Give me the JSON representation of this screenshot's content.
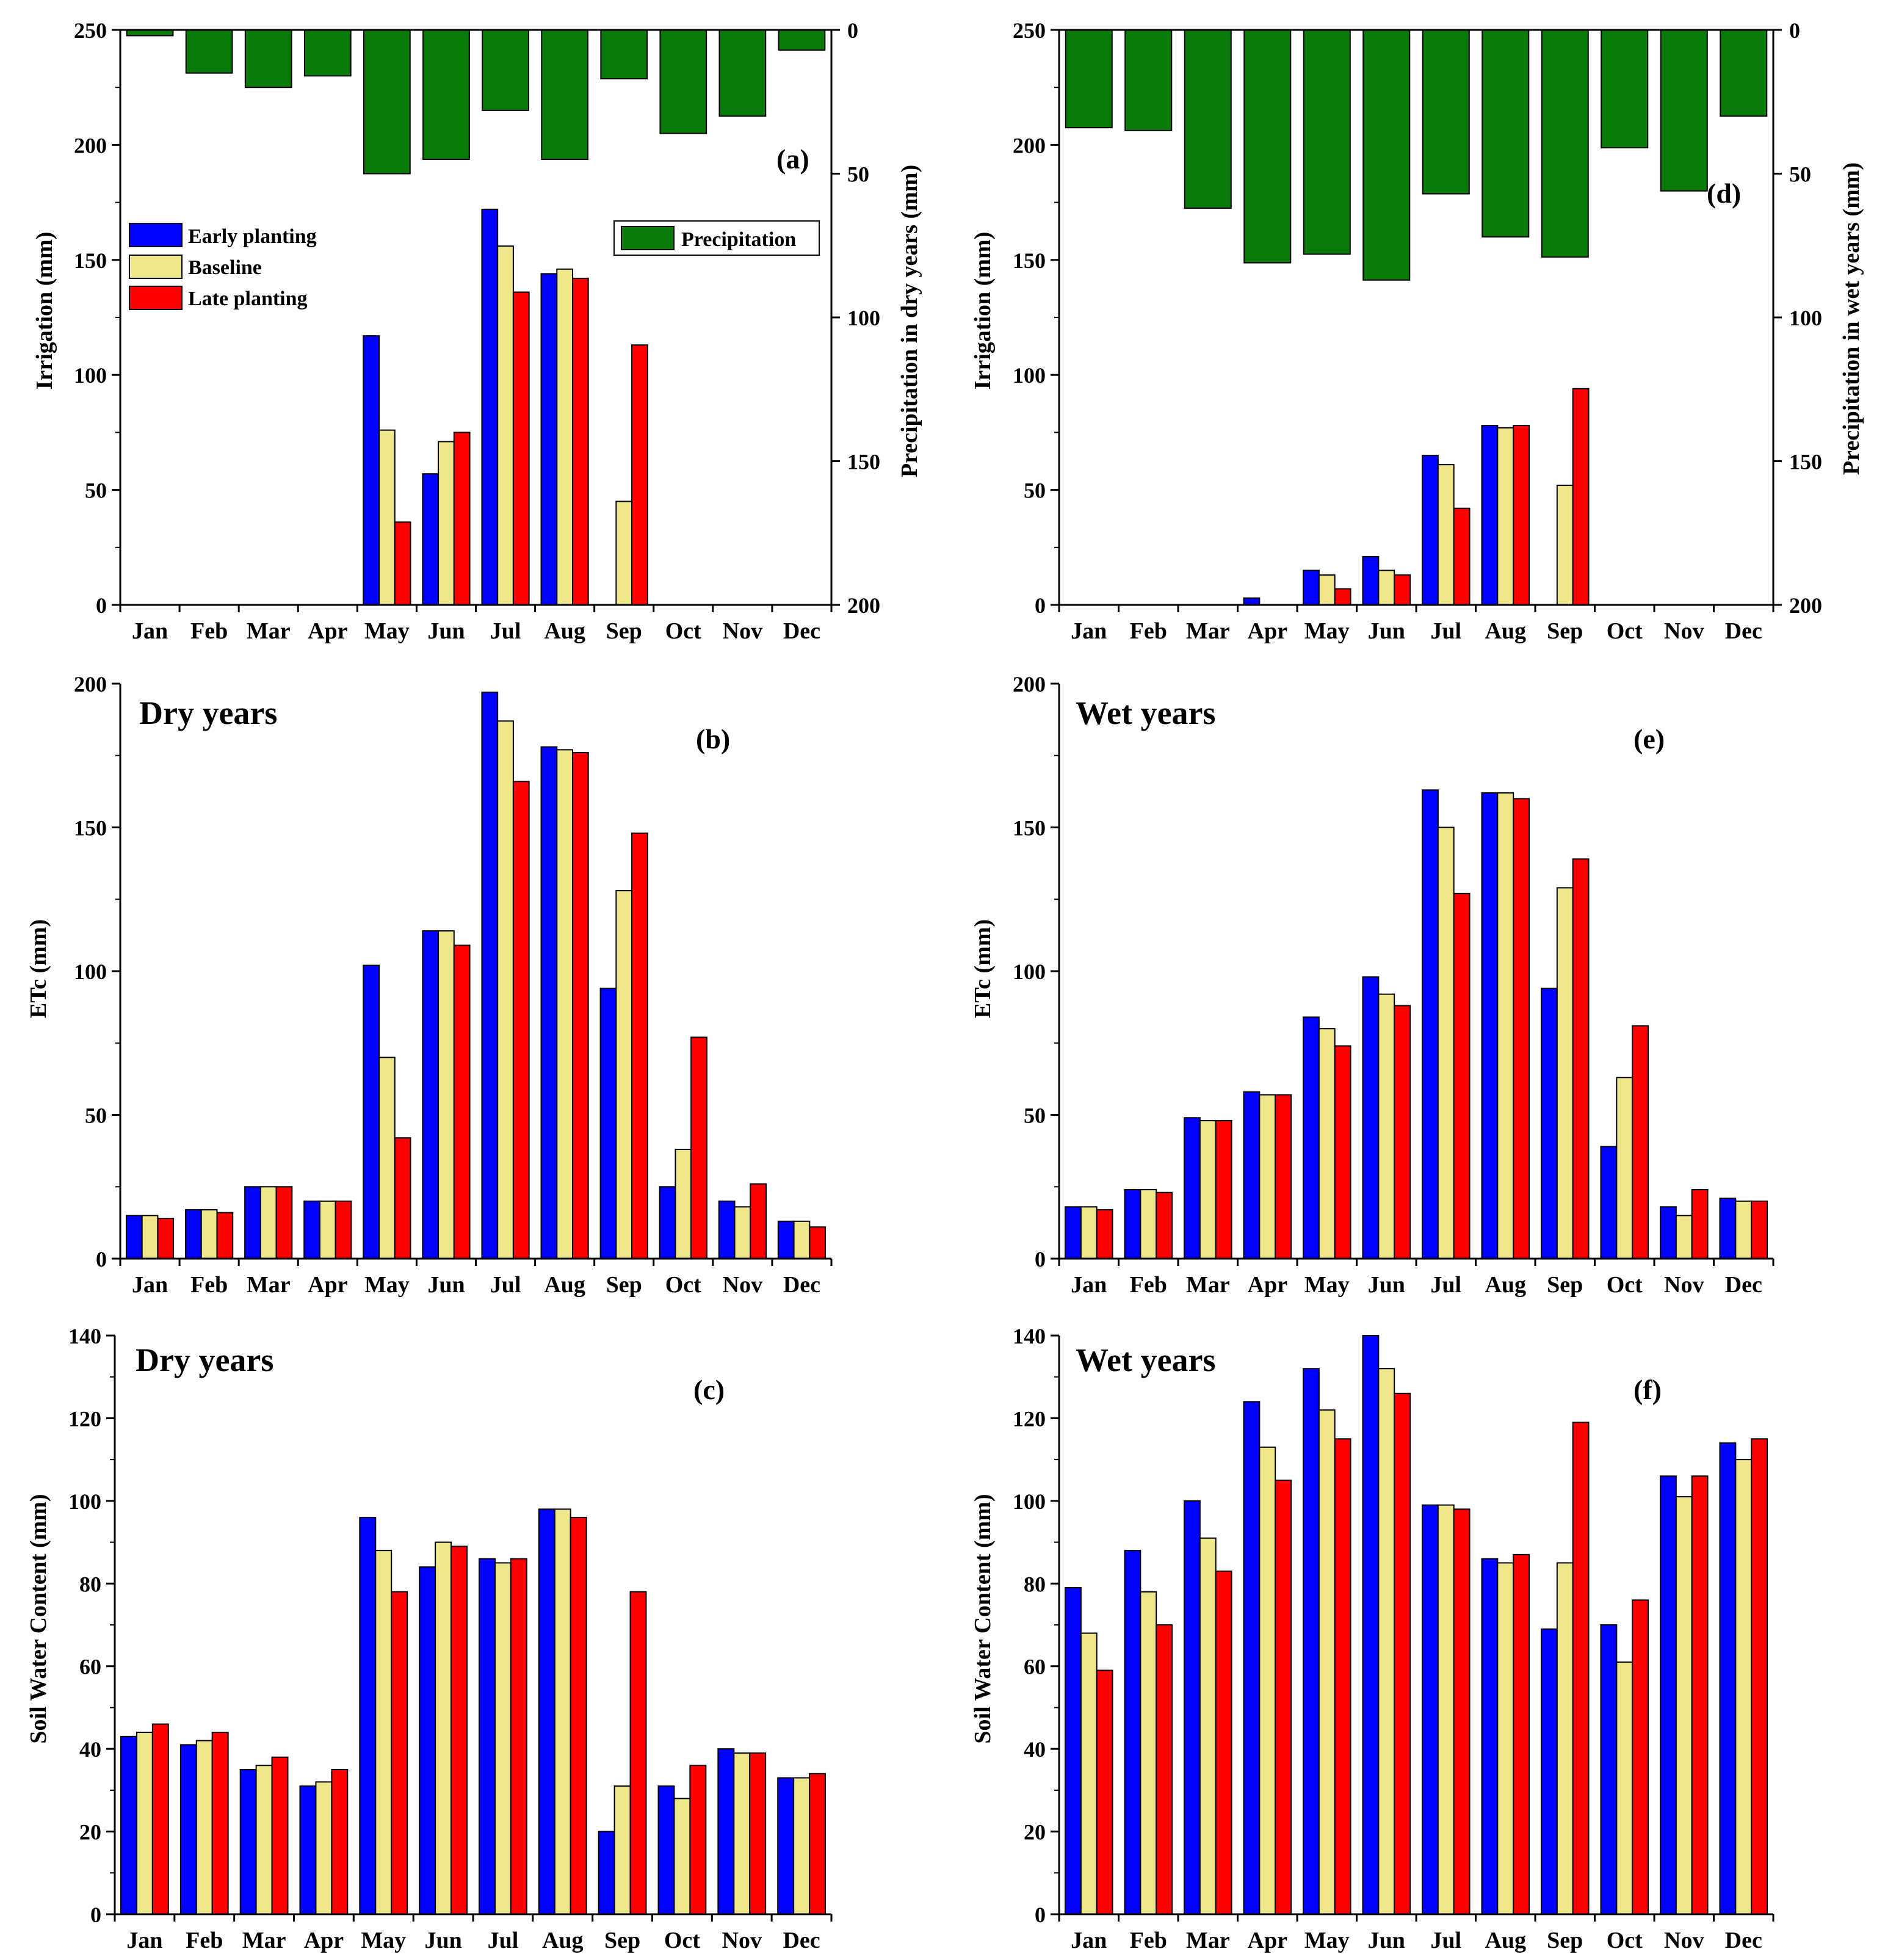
{
  "figure": {
    "colors": {
      "early": "#0000ff",
      "baseline": "#f0e68c",
      "late": "#ff0000",
      "precip": "#0a7a0a",
      "axis": "#000000"
    }
  },
  "chart_data": [
    {
      "id": "a",
      "type": "bar",
      "panel_label": "(a)",
      "categories": [
        "Jan",
        "Feb",
        "Mar",
        "Apr",
        "May",
        "Jun",
        "Jul",
        "Aug",
        "Sep",
        "Oct",
        "Nov",
        "Dec"
      ],
      "ylabel": "Irrigation (mm)",
      "ylim": [
        0,
        250
      ],
      "yticks": [
        0,
        50,
        100,
        150,
        200,
        250
      ],
      "series": [
        {
          "name": "Early planting",
          "values": [
            0,
            0,
            0,
            0,
            117,
            57,
            172,
            144,
            0,
            0,
            0,
            0
          ]
        },
        {
          "name": "Baseline",
          "values": [
            0,
            0,
            0,
            0,
            76,
            71,
            156,
            146,
            45,
            0,
            0,
            0
          ]
        },
        {
          "name": "Late planting",
          "values": [
            0,
            0,
            0,
            0,
            36,
            75,
            136,
            142,
            113,
            0,
            0,
            0
          ]
        }
      ],
      "legend": [
        "Early planting",
        "Baseline",
        "Late planting"
      ],
      "legend_placement": "top-left",
      "secondary": {
        "name": "Precipitation",
        "ylabel": "Precipitation in dry years (mm)",
        "ylim": [
          0,
          200
        ],
        "yticks": [
          0,
          50,
          100,
          150,
          200
        ],
        "direction": "inverted",
        "values": [
          2,
          15,
          20,
          16,
          50,
          45,
          28,
          45,
          17,
          36,
          30,
          7
        ],
        "legend": "Precipitation",
        "legend_placement": "top-right"
      }
    },
    {
      "id": "d",
      "type": "bar",
      "panel_label": "(d)",
      "categories": [
        "Jan",
        "Feb",
        "Mar",
        "Apr",
        "May",
        "Jun",
        "Jul",
        "Aug",
        "Sep",
        "Oct",
        "Nov",
        "Dec"
      ],
      "ylabel": "Irrigation (mm)",
      "ylim": [
        0,
        250
      ],
      "yticks": [
        0,
        50,
        100,
        150,
        200,
        250
      ],
      "series": [
        {
          "name": "Early planting",
          "values": [
            0,
            0,
            0,
            3,
            15,
            21,
            65,
            78,
            0,
            0,
            0,
            0
          ]
        },
        {
          "name": "Baseline",
          "values": [
            0,
            0,
            0,
            0,
            13,
            15,
            61,
            77,
            52,
            0,
            0,
            0
          ]
        },
        {
          "name": "Late planting",
          "values": [
            0,
            0,
            0,
            0,
            7,
            13,
            42,
            78,
            94,
            0,
            0,
            0
          ]
        }
      ],
      "secondary": {
        "name": "Precipitation",
        "ylabel": "Precipitation in wet years (mm)",
        "ylim": [
          0,
          200
        ],
        "yticks": [
          0,
          50,
          100,
          150,
          200
        ],
        "direction": "inverted",
        "values": [
          34,
          35,
          62,
          81,
          78,
          87,
          57,
          72,
          79,
          41,
          56,
          30
        ]
      }
    },
    {
      "id": "b",
      "type": "bar",
      "panel_label": "(b)",
      "title": "Dry years",
      "categories": [
        "Jan",
        "Feb",
        "Mar",
        "Apr",
        "May",
        "Jun",
        "Jul",
        "Aug",
        "Sep",
        "Oct",
        "Nov",
        "Dec"
      ],
      "ylabel": "ETc (mm)",
      "ylim": [
        0,
        200
      ],
      "yticks": [
        0,
        50,
        100,
        150,
        200
      ],
      "series": [
        {
          "name": "Early planting",
          "values": [
            15,
            17,
            25,
            20,
            102,
            114,
            197,
            178,
            94,
            25,
            20,
            13
          ]
        },
        {
          "name": "Baseline",
          "values": [
            15,
            17,
            25,
            20,
            70,
            114,
            187,
            177,
            128,
            38,
            18,
            13
          ]
        },
        {
          "name": "Late planting",
          "values": [
            14,
            16,
            25,
            20,
            42,
            109,
            166,
            176,
            148,
            77,
            26,
            11
          ]
        }
      ]
    },
    {
      "id": "e",
      "type": "bar",
      "panel_label": "(e)",
      "title": "Wet years",
      "categories": [
        "Jan",
        "Feb",
        "Mar",
        "Apr",
        "May",
        "Jun",
        "Jul",
        "Aug",
        "Sep",
        "Oct",
        "Nov",
        "Dec"
      ],
      "ylabel": "ETc (mm)",
      "ylim": [
        0,
        200
      ],
      "yticks": [
        0,
        50,
        100,
        150,
        200
      ],
      "series": [
        {
          "name": "Early planting",
          "values": [
            18,
            24,
            49,
            58,
            84,
            98,
            163,
            162,
            94,
            39,
            18,
            21
          ]
        },
        {
          "name": "Baseline",
          "values": [
            18,
            24,
            48,
            57,
            80,
            92,
            150,
            162,
            129,
            63,
            15,
            20
          ]
        },
        {
          "name": "Late planting",
          "values": [
            17,
            23,
            48,
            57,
            74,
            88,
            127,
            160,
            139,
            81,
            24,
            20
          ]
        }
      ]
    },
    {
      "id": "c",
      "type": "bar",
      "panel_label": "(c)",
      "title": "Dry years",
      "categories": [
        "Jan",
        "Feb",
        "Mar",
        "Apr",
        "May",
        "Jun",
        "Jul",
        "Aug",
        "Sep",
        "Oct",
        "Nov",
        "Dec"
      ],
      "ylabel": "Soil Water Content (mm)",
      "ylim": [
        0,
        140
      ],
      "yticks": [
        0,
        20,
        40,
        60,
        80,
        100,
        120,
        140
      ],
      "series": [
        {
          "name": "Early planting",
          "values": [
            43,
            41,
            35,
            31,
            96,
            84,
            86,
            98,
            20,
            31,
            40,
            33
          ]
        },
        {
          "name": "Baseline",
          "values": [
            44,
            42,
            36,
            32,
            88,
            90,
            85,
            98,
            31,
            28,
            39,
            33
          ]
        },
        {
          "name": "Late planting",
          "values": [
            46,
            44,
            38,
            35,
            78,
            89,
            86,
            96,
            78,
            36,
            39,
            34
          ]
        }
      ]
    },
    {
      "id": "f",
      "type": "bar",
      "panel_label": "(f)",
      "title": "Wet years",
      "categories": [
        "Jan",
        "Feb",
        "Mar",
        "Apr",
        "May",
        "Jun",
        "Jul",
        "Aug",
        "Sep",
        "Oct",
        "Nov",
        "Dec"
      ],
      "ylabel": "Soil Water Content (mm)",
      "ylim": [
        0,
        140
      ],
      "yticks": [
        0,
        20,
        40,
        60,
        80,
        100,
        120,
        140
      ],
      "series": [
        {
          "name": "Early planting",
          "values": [
            79,
            88,
            100,
            124,
            132,
            140,
            99,
            86,
            69,
            70,
            106,
            114
          ]
        },
        {
          "name": "Baseline",
          "values": [
            68,
            78,
            91,
            113,
            122,
            132,
            99,
            85,
            85,
            61,
            101,
            110
          ]
        },
        {
          "name": "Late planting",
          "values": [
            59,
            70,
            83,
            105,
            115,
            126,
            98,
            87,
            119,
            76,
            106,
            115
          ]
        }
      ]
    }
  ]
}
